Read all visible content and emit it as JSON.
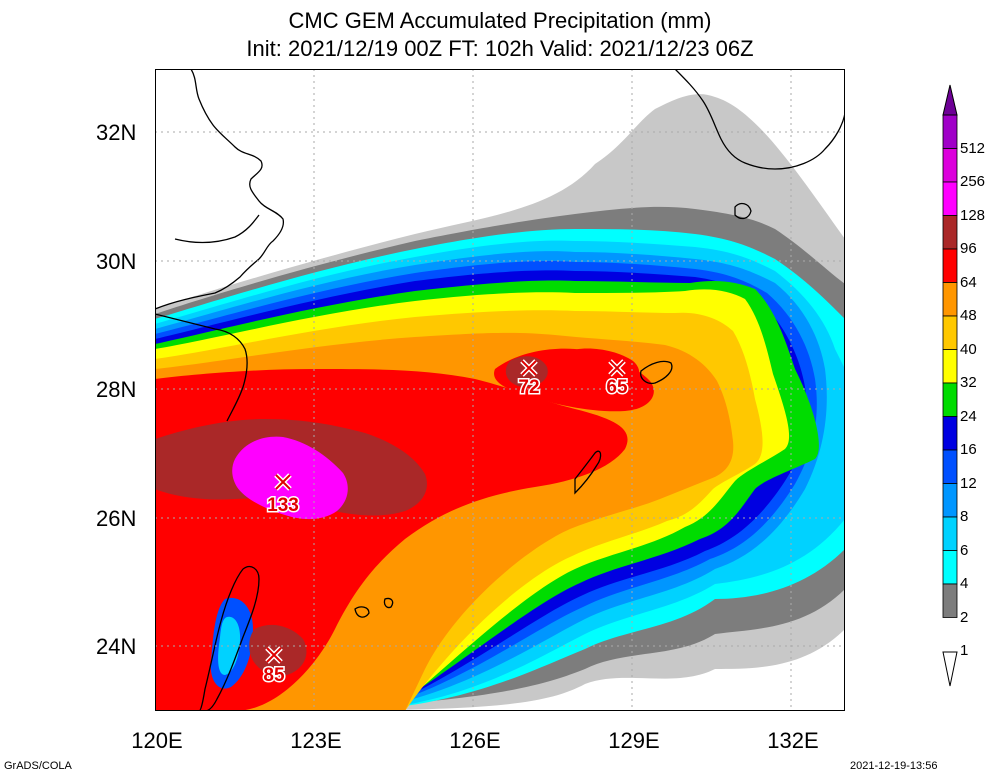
{
  "title": {
    "line1": "CMC GEM Accumulated Precipitation (mm)",
    "line2": "Init: 2021/12/19 00Z  FT: 102h  Valid: 2021/12/23 06Z"
  },
  "axes": {
    "lat_ticks": [
      "32N",
      "30N",
      "28N",
      "26N",
      "24N"
    ],
    "lon_ticks": [
      "120E",
      "123E",
      "126E",
      "129E",
      "132E"
    ]
  },
  "legend": {
    "levels": [
      "1",
      "2",
      "4",
      "6",
      "8",
      "12",
      "16",
      "24",
      "32",
      "40",
      "48",
      "64",
      "96",
      "128",
      "256",
      "512"
    ],
    "colors": [
      "#c8c8c8",
      "#7d7d7d",
      "#00ffff",
      "#00d2ff",
      "#0096ff",
      "#0050ff",
      "#0000e1",
      "#00dc00",
      "#ffff00",
      "#ffc800",
      "#ff9600",
      "#ff0000",
      "#aa2828",
      "#ff00ff",
      "#dc00dc",
      "#a000c8",
      "#6e0096"
    ]
  },
  "maxima": [
    {
      "value": "133"
    },
    {
      "value": "72"
    },
    {
      "value": "65"
    },
    {
      "value": "85"
    }
  ],
  "footer": {
    "left": "GrADS/COLA",
    "right": "2021-12-19-13:56"
  },
  "chart_data": {
    "type": "heatmap",
    "title": "CMC GEM Accumulated Precipitation (mm)",
    "subtitle": "Init: 2021/12/19 00Z  FT: 102h  Valid: 2021/12/23 06Z",
    "lon_range": [
      120,
      133
    ],
    "lat_range": [
      23,
      33
    ],
    "maxima": [
      {
        "lon": 122.3,
        "lat": 26.5,
        "value": 133
      },
      {
        "lon": 127.0,
        "lat": 28.3,
        "value": 72
      },
      {
        "lon": 128.7,
        "lat": 28.3,
        "value": 65
      },
      {
        "lon": 122.2,
        "lat": 23.8,
        "value": 85
      }
    ]
  }
}
